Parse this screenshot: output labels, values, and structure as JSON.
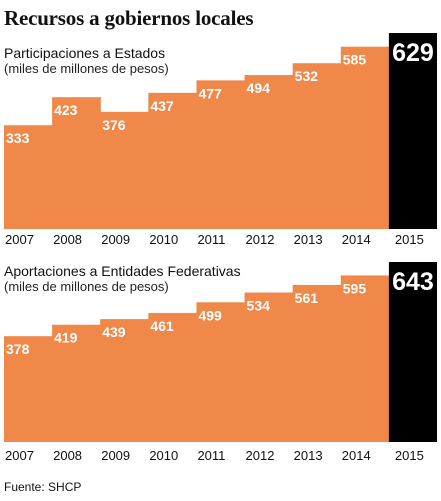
{
  "page": {
    "title": "Recursos a gobiernos locales",
    "source": "Fuente: SHCP"
  },
  "colors": {
    "bar": "#F0884A",
    "highlight": "#000000",
    "label": "#FFFFFF"
  },
  "chart_data": [
    {
      "type": "area",
      "title": "Participaciones a Estados",
      "subtitle": "(miles de millones de pesos)",
      "categories": [
        "2007",
        "2008",
        "2009",
        "2010",
        "2011",
        "2012",
        "2013",
        "2014",
        "2015"
      ],
      "values": [
        333,
        423,
        376,
        437,
        477,
        494,
        532,
        585,
        629
      ],
      "ylim": [
        0,
        629
      ],
      "grid": false,
      "highlight_last": true
    },
    {
      "type": "area",
      "title": "Aportaciones a Entidades Federativas",
      "subtitle": "(miles de millones de pesos)",
      "categories": [
        "2007",
        "2008",
        "2009",
        "2010",
        "2011",
        "2012",
        "2013",
        "2014",
        "2015"
      ],
      "values": [
        378,
        419,
        439,
        461,
        499,
        534,
        561,
        595,
        643
      ],
      "ylim": [
        0,
        643
      ],
      "grid": false,
      "highlight_last": true
    }
  ]
}
